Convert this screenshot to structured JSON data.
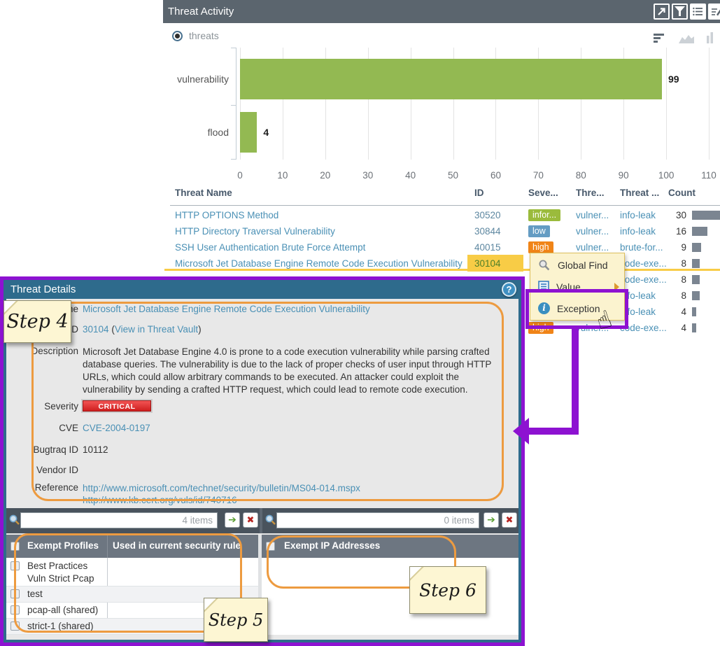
{
  "colors": {
    "panel_header_bg": "#5b656e",
    "link": "#4a90b5",
    "bar_green": "#93b952",
    "severity": {
      "informational": "#9bbb3c",
      "low": "#649cc3",
      "high": "#f08418",
      "critical": "#d42a2a"
    },
    "highlight_yellow": "#f8cc46",
    "annotation_purple": "#8d12d1",
    "annotation_orange": "#ed9b40",
    "count_bar": "#7b8591"
  },
  "threat_panel": {
    "title": "Threat Activity",
    "header_icons": [
      "open-in-window-icon",
      "filter-icon",
      "list-view-icon",
      "edit-icon"
    ],
    "radio_label": "threats",
    "chart_type_icons": [
      "hbar-chart-icon",
      "area-chart-icon",
      "vbar-chart-icon"
    ]
  },
  "chart_data": {
    "type": "bar",
    "orientation": "horizontal",
    "categories": [
      "vulnerability",
      "flood"
    ],
    "values": [
      99,
      4
    ],
    "value_labels": [
      "99",
      "4"
    ],
    "xlim": [
      0,
      110
    ],
    "xticks": [
      0,
      10,
      20,
      30,
      40,
      50,
      60,
      70,
      80,
      90,
      100,
      110
    ],
    "grid": true,
    "bar_color": "#93b952",
    "title": "",
    "xlabel": "",
    "ylabel": ""
  },
  "threat_table": {
    "columns": [
      "Threat Name",
      "ID",
      "Seve...",
      "Thre...",
      "Threat ...",
      "Count"
    ],
    "rows": [
      {
        "name": "HTTP OPTIONS Method",
        "id": "30520",
        "severity": "infor...",
        "severity_key": "informational",
        "type": "vulner...",
        "subtype": "info-leak",
        "count": 30
      },
      {
        "name": "HTTP Directory Traversal Vulnerability",
        "id": "30844",
        "severity": "low",
        "severity_key": "low",
        "type": "vulner...",
        "subtype": "info-leak",
        "count": 16
      },
      {
        "name": "SSH User Authentication Brute Force Attempt",
        "id": "40015",
        "severity": "high",
        "severity_key": "high",
        "type": "vulner...",
        "subtype": "brute-for...",
        "count": 9
      },
      {
        "name": "Microsoft Jet Database Engine Remote Code Execution Vulnerability",
        "id": "30104",
        "severity": "",
        "severity_key": "",
        "type": "",
        "subtype": "code-exe...",
        "count": 8,
        "selected": true,
        "id_highlighted": true
      },
      {
        "name": "",
        "id": "",
        "severity": "",
        "severity_key": "",
        "type": "",
        "subtype": "code-exe...",
        "count": 8
      },
      {
        "name": "",
        "id": "",
        "severity": "",
        "severity_key": "",
        "type": "",
        "subtype": "info-leak",
        "count": 8
      },
      {
        "name": "",
        "id": "",
        "severity": "",
        "severity_key": "",
        "type": "",
        "subtype": "info-leak",
        "count": 4
      },
      {
        "name": "",
        "id": "",
        "severity": "high",
        "severity_key": "high",
        "type": "vulner...",
        "subtype": "code-exe...",
        "count": 4
      }
    ]
  },
  "context_menu": {
    "items": [
      {
        "label": "Global Find",
        "icon": "magnifier-icon",
        "has_submenu": false
      },
      {
        "label": "Value",
        "icon": "value-icon",
        "has_submenu": true
      },
      {
        "label": "Exception",
        "icon": "info-icon",
        "has_submenu": false
      }
    ]
  },
  "dialog": {
    "title": "Threat Details",
    "help_icon": "?",
    "fields": {
      "name": {
        "label": "Name",
        "value": "Microsoft Jet Database Engine Remote Code Execution Vulnerability"
      },
      "id": {
        "label": "ID",
        "value": "30104",
        "link": "View in Threat Vault"
      },
      "description": {
        "label": "Description",
        "value": "Microsoft Jet Database Engine 4.0 is prone to a code execution vulnerability while parsing crafted database queries. The vulnerability is due to the lack of proper checks of user input through HTTP URLs, which could allow arbitrary commands to be executed. An attacker could exploit the vulnerability by sending a crafted HTTP request, which could lead to remote code execution."
      },
      "severity": {
        "label": "Severity",
        "value": "CRITICAL"
      },
      "cve": {
        "label": "CVE",
        "value": "CVE-2004-0197"
      },
      "bugtraq": {
        "label": "Bugtraq ID",
        "value": "10112"
      },
      "vendor": {
        "label": "Vendor ID",
        "value": ""
      },
      "reference": {
        "label": "Reference",
        "values": [
          "http://www.microsoft.com/technet/security/bulletin/MS04-014.mspx",
          "http://www.kb.cert.org/vuls/id/740716"
        ]
      }
    },
    "exempt_profiles": {
      "items_count": "4 items",
      "columns": [
        "Exempt Profiles",
        "Used in current security rule"
      ],
      "rows": [
        "Best Practices\nVuln Strict Pcap",
        "test",
        "pcap-all (shared)",
        "strict-1 (shared)"
      ]
    },
    "exempt_ips": {
      "items_count": "0 items",
      "columns": [
        "Exempt IP Addresses"
      ],
      "rows": []
    }
  },
  "annotations": {
    "step4": "Step 4",
    "step5": "Step 5",
    "step6": "Step 6"
  }
}
